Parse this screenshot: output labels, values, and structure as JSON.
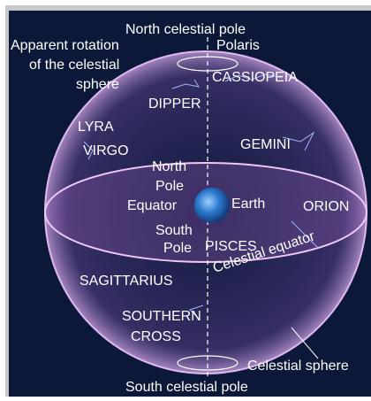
{
  "title_labels": {
    "north_celestial_pole": "North celestial pole",
    "apparent_rotation": [
      "Apparent rotation",
      "of the celestial",
      "sphere"
    ],
    "polaris": "Polaris",
    "cassiopeia": "CASSIOPEIA",
    "dipper": "DIPPER",
    "lyra": "LYRA",
    "virgo": "VIRGO",
    "gemini": "GEMINI",
    "north_pole": [
      "North",
      "Pole"
    ],
    "equator": "Equator",
    "earth": "Earth",
    "orion": "ORION",
    "south_pole": [
      "South",
      "Pole"
    ],
    "pisces": "PISCES",
    "celestial_equator": "Celestial equator",
    "sagittarius": "SAGITTARIUS",
    "southern_cross": [
      "SOUTHERN",
      "CROSS"
    ],
    "celestial_sphere": "Celestial sphere",
    "south_celestial_pole": "South celestial pole"
  }
}
